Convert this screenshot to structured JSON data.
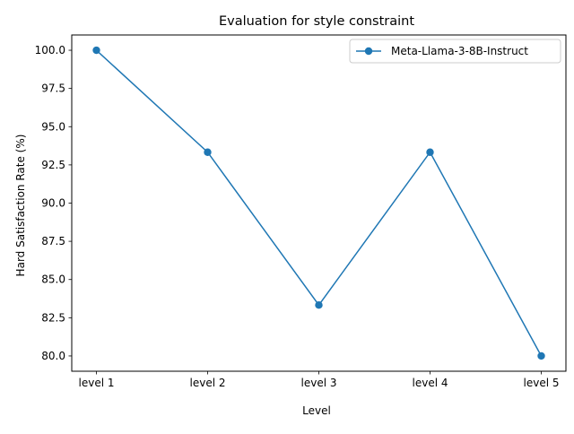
{
  "chart_data": {
    "type": "line",
    "title": "Evaluation for style constraint",
    "xlabel": "Level",
    "ylabel": "Hard Satisfaction Rate (%)",
    "categories": [
      "level 1",
      "level 2",
      "level 3",
      "level 4",
      "level 5"
    ],
    "series": [
      {
        "name": "Meta-Llama-3-8B-Instruct",
        "values": [
          100.0,
          93.33,
          83.33,
          93.33,
          80.0
        ],
        "color": "#1f77b4",
        "marker": "circle"
      }
    ],
    "yticks": [
      "80.0",
      "82.5",
      "85.0",
      "87.5",
      "90.0",
      "92.5",
      "95.0",
      "97.5",
      "100.0"
    ],
    "ylim": [
      79,
      101
    ],
    "grid": false,
    "legend_position": "top-right"
  }
}
